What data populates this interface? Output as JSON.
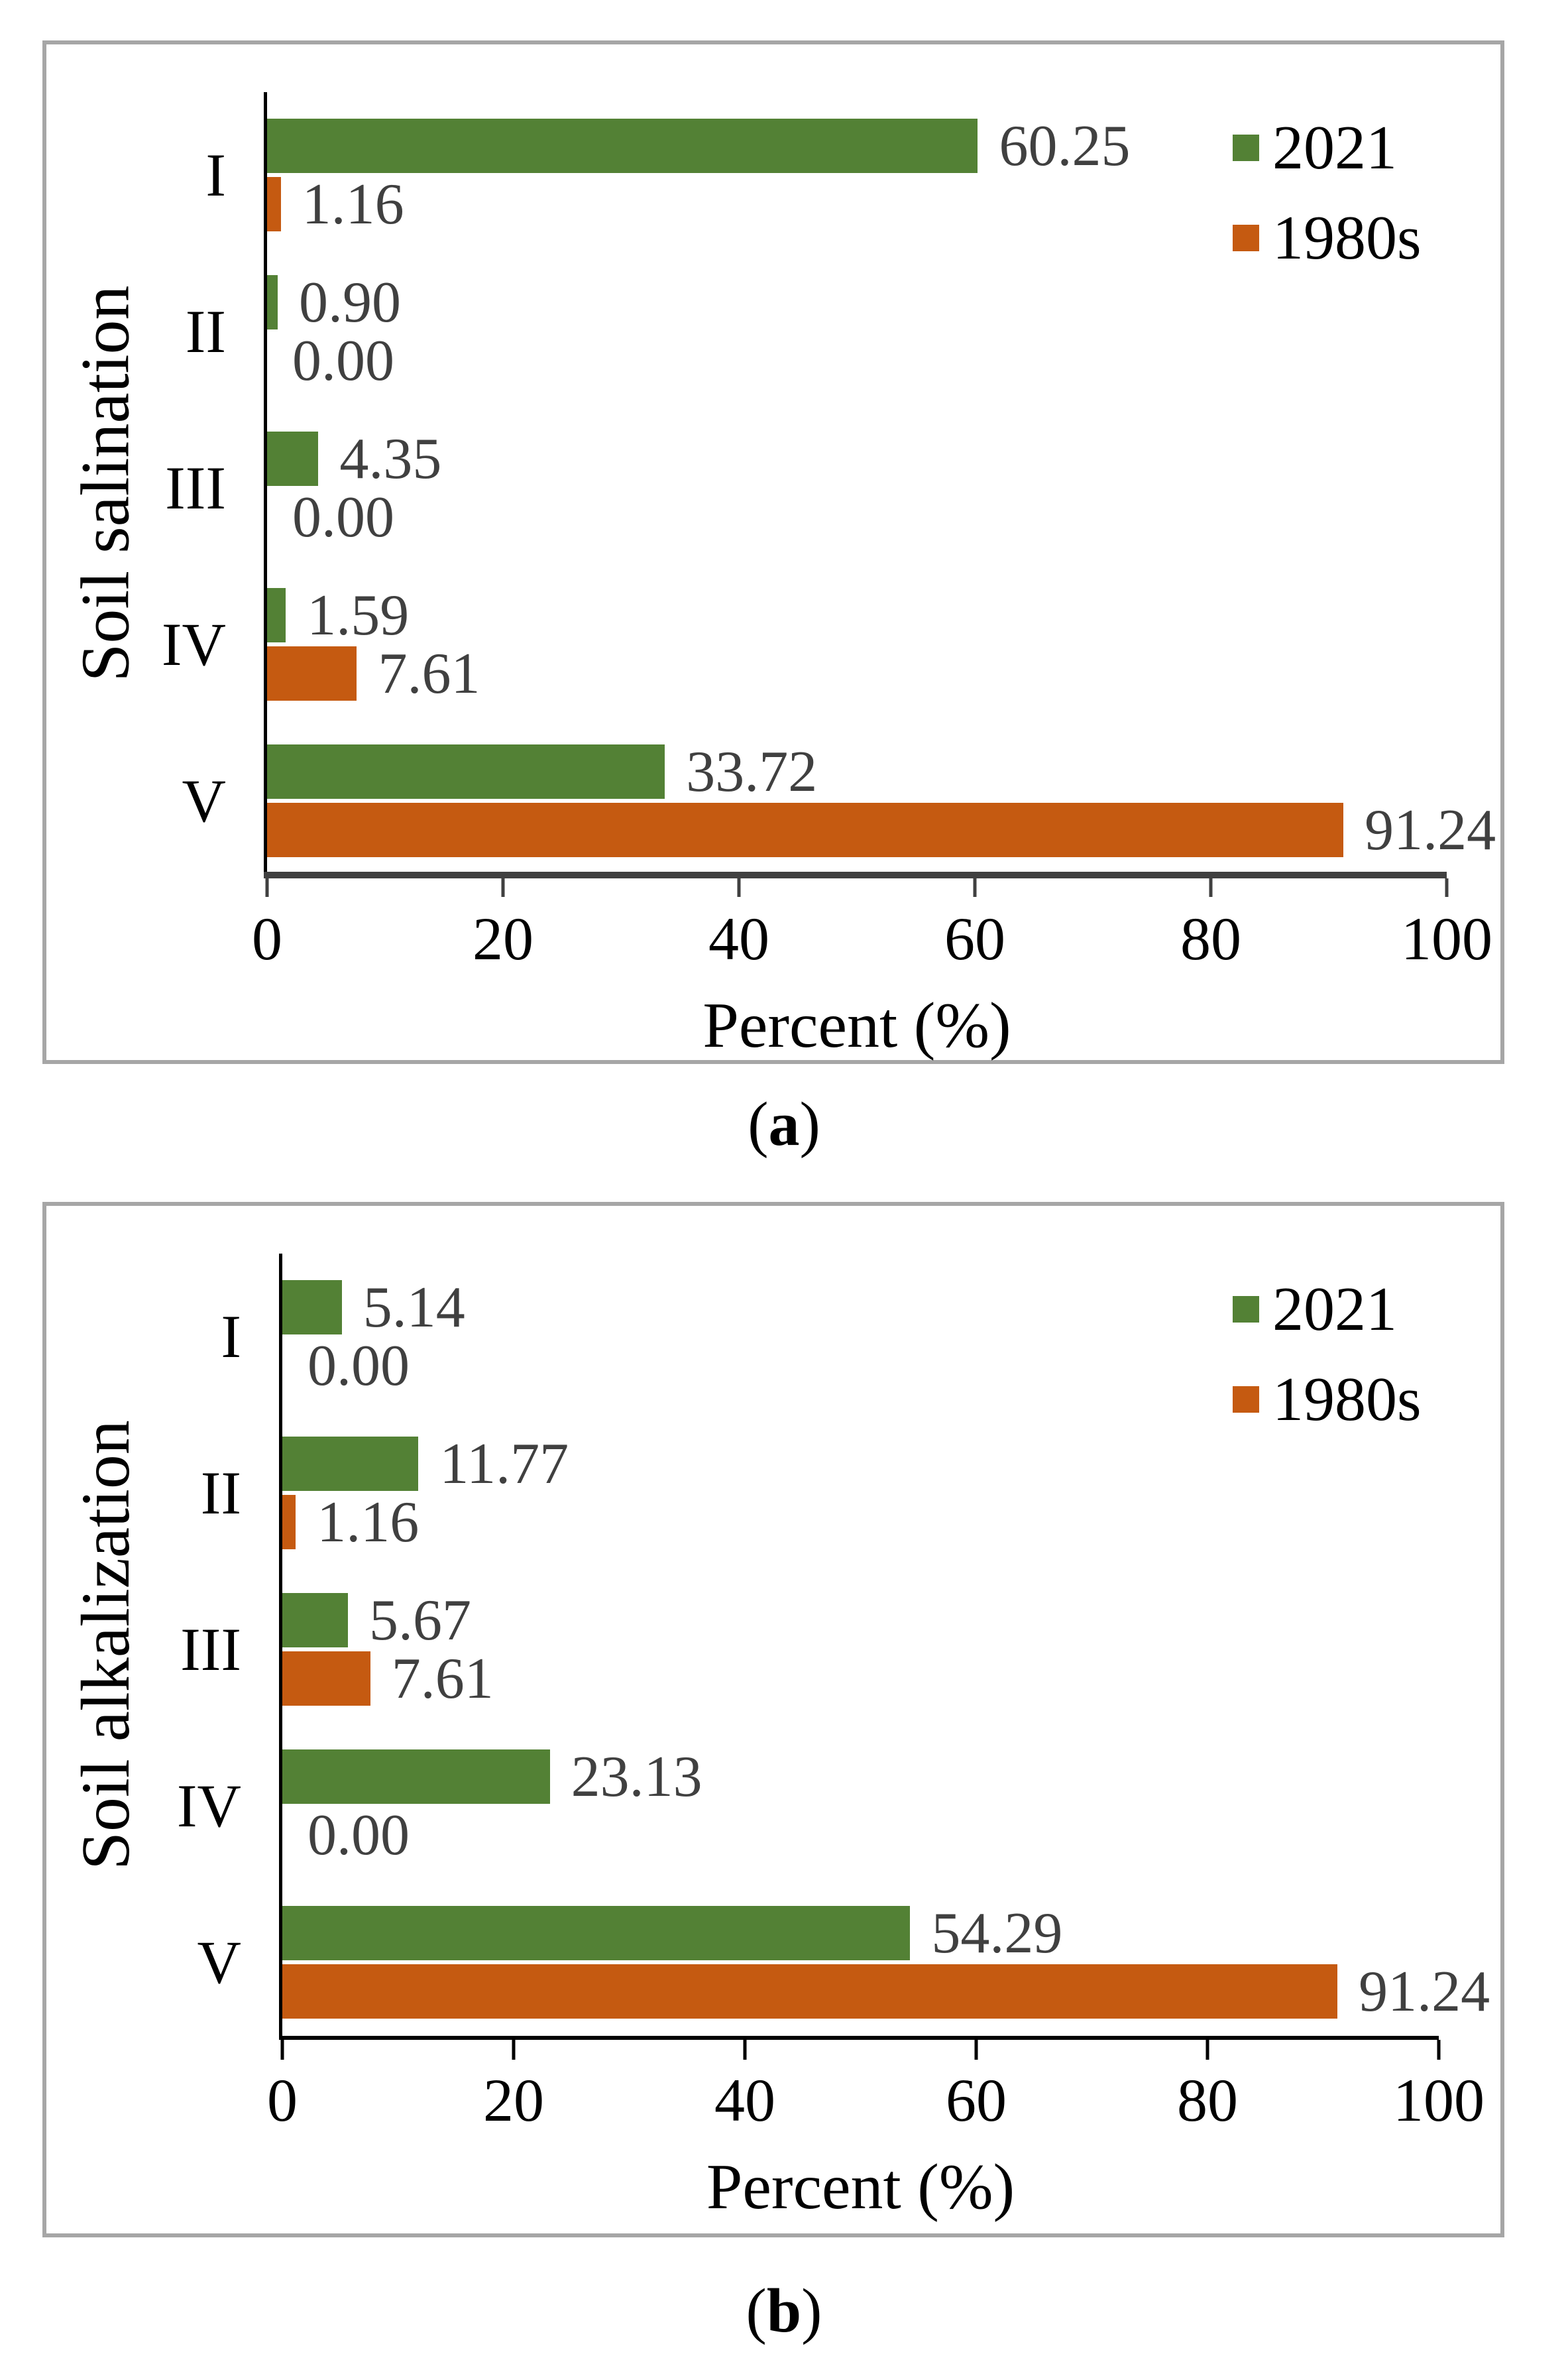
{
  "captions": {
    "a": {
      "open": "(",
      "letter": "a",
      "close": ")"
    },
    "b": {
      "open": "(",
      "letter": "b",
      "close": ")"
    }
  },
  "chart_data": [
    {
      "type": "bar",
      "orientation": "horizontal",
      "title": "",
      "ylabel": "Soil salination",
      "xlabel": "Percent (%)",
      "categories": [
        "I",
        "II",
        "III",
        "IV",
        "V"
      ],
      "xticks": [
        "0",
        "20",
        "40",
        "60",
        "80",
        "100"
      ],
      "xlim": [
        0,
        100
      ],
      "grid": false,
      "legend_position": "top-right",
      "series": [
        {
          "name": "2021",
          "color": "#538135",
          "values": [
            60.25,
            0.9,
            4.35,
            1.59,
            33.72
          ],
          "labels": [
            "60.25",
            "0.90",
            "4.35",
            "1.59",
            "33.72"
          ]
        },
        {
          "name": "1980s",
          "color": "#C55A11",
          "values": [
            1.16,
            0.0,
            0.0,
            7.61,
            91.24
          ],
          "labels": [
            "1.16",
            "0.00",
            "0.00",
            "7.61",
            "91.24"
          ]
        }
      ]
    },
    {
      "type": "bar",
      "orientation": "horizontal",
      "title": "",
      "ylabel": "Soil alkalization",
      "xlabel": "Percent (%)",
      "categories": [
        "I",
        "II",
        "III",
        "IV",
        "V"
      ],
      "xticks": [
        "0",
        "20",
        "40",
        "60",
        "80",
        "100"
      ],
      "xlim": [
        0,
        100
      ],
      "grid": false,
      "legend_position": "top-right",
      "series": [
        {
          "name": "2021",
          "color": "#538135",
          "values": [
            5.14,
            11.77,
            5.67,
            23.13,
            54.29
          ],
          "labels": [
            "5.14",
            "11.77",
            "5.67",
            "23.13",
            "54.29"
          ]
        },
        {
          "name": "1980s",
          "color": "#C55A11",
          "values": [
            0.0,
            1.16,
            7.61,
            0.0,
            91.24
          ],
          "labels": [
            "0.00",
            "1.16",
            "7.61",
            "0.00",
            "91.24"
          ]
        }
      ]
    }
  ]
}
